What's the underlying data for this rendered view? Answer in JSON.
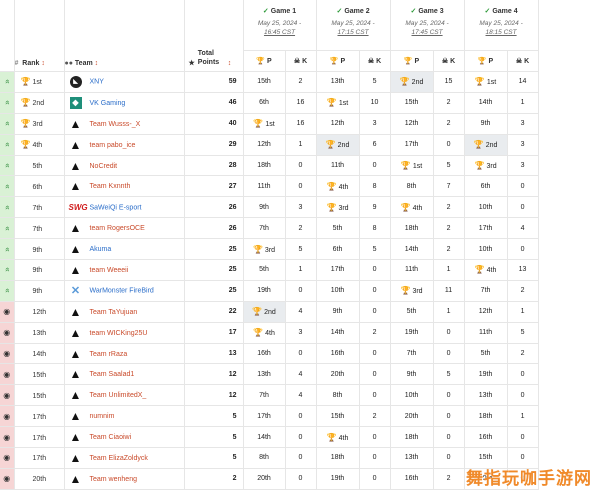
{
  "headers": {
    "rank": "Rank",
    "team": "Team",
    "total_points": "Total Points",
    "p": "P",
    "k": "K"
  },
  "games": [
    {
      "name": "Game 1",
      "date1": "May 25, 2024 -",
      "date2": "16:45 CST"
    },
    {
      "name": "Game 2",
      "date1": "May 25, 2024 -",
      "date2": "17:15 CST"
    },
    {
      "name": "Game 3",
      "date1": "May 25, 2024 -",
      "date2": "17:45 CST"
    },
    {
      "name": "Game 4",
      "date1": "May 25, 2024 -",
      "date2": "18:15 CST"
    }
  ],
  "rows": [
    {
      "trend": "up",
      "rank": "1st",
      "trophy": "gold",
      "logo": "xny",
      "team": "XNY",
      "blue": true,
      "points": "59",
      "g": [
        [
          "15th",
          "2"
        ],
        [
          "13th",
          "5"
        ],
        [
          "2nd",
          "15"
        ],
        [
          "1st",
          "14"
        ]
      ]
    },
    {
      "trend": "up",
      "rank": "2nd",
      "trophy": "silver",
      "logo": "vk",
      "team": "VK Gaming",
      "blue": true,
      "points": "46",
      "g": [
        [
          "6th",
          "16"
        ],
        [
          "1st",
          "10"
        ],
        [
          "15th",
          "2"
        ],
        [
          "14th",
          "1"
        ]
      ]
    },
    {
      "trend": "up",
      "rank": "3rd",
      "trophy": "bronze",
      "logo": "apex",
      "team": "Team Wusss-_X",
      "blue": false,
      "points": "40",
      "g": [
        [
          "1st",
          "16"
        ],
        [
          "12th",
          "3"
        ],
        [
          "12th",
          "2"
        ],
        [
          "9th",
          "3"
        ]
      ]
    },
    {
      "trend": "up",
      "rank": "4th",
      "trophy": "gold",
      "logo": "apex",
      "team": "team pabo_ice",
      "blue": false,
      "points": "29",
      "g": [
        [
          "12th",
          "1"
        ],
        [
          "2nd",
          "6"
        ],
        [
          "17th",
          "0"
        ],
        [
          "2nd",
          "3"
        ]
      ]
    },
    {
      "trend": "up",
      "rank": "5th",
      "trophy": "",
      "logo": "apex",
      "team": "NoCredit",
      "blue": false,
      "points": "28",
      "g": [
        [
          "18th",
          "0"
        ],
        [
          "11th",
          "0"
        ],
        [
          "1st",
          "5"
        ],
        [
          "3rd",
          "3"
        ]
      ]
    },
    {
      "trend": "up",
      "rank": "6th",
      "trophy": "",
      "logo": "apex",
      "team": "Team Kxnnth",
      "blue": false,
      "points": "27",
      "g": [
        [
          "11th",
          "0"
        ],
        [
          "4th",
          "8"
        ],
        [
          "8th",
          "7"
        ],
        [
          "6th",
          "0"
        ]
      ]
    },
    {
      "trend": "up",
      "rank": "7th",
      "trophy": "",
      "logo": "swg",
      "team": "SaWeiQi E-sport",
      "blue": true,
      "points": "26",
      "g": [
        [
          "9th",
          "3"
        ],
        [
          "3rd",
          "9"
        ],
        [
          "4th",
          "2"
        ],
        [
          "10th",
          "0"
        ]
      ]
    },
    {
      "trend": "up",
      "rank": "7th",
      "trophy": "",
      "logo": "apex",
      "team": "team RogersOCE",
      "blue": false,
      "points": "26",
      "g": [
        [
          "7th",
          "2"
        ],
        [
          "5th",
          "8"
        ],
        [
          "18th",
          "2"
        ],
        [
          "17th",
          "4"
        ]
      ]
    },
    {
      "trend": "up",
      "rank": "9th",
      "trophy": "",
      "logo": "apex",
      "team": "Akuma",
      "blue": true,
      "points": "25",
      "g": [
        [
          "3rd",
          "5"
        ],
        [
          "6th",
          "5"
        ],
        [
          "14th",
          "2"
        ],
        [
          "10th",
          "0"
        ]
      ]
    },
    {
      "trend": "up",
      "rank": "9th",
      "trophy": "",
      "logo": "apex",
      "team": "team Weeeii",
      "blue": false,
      "points": "25",
      "g": [
        [
          "5th",
          "1"
        ],
        [
          "17th",
          "0"
        ],
        [
          "11th",
          "1"
        ],
        [
          "4th",
          "13"
        ]
      ]
    },
    {
      "trend": "up",
      "rank": "9th",
      "trophy": "",
      "logo": "wm",
      "team": "WarMonster FireBird",
      "blue": true,
      "points": "25",
      "g": [
        [
          "19th",
          "0"
        ],
        [
          "10th",
          "0"
        ],
        [
          "3rd",
          "11"
        ],
        [
          "7th",
          "2"
        ]
      ]
    },
    {
      "trend": "dn",
      "rank": "12th",
      "trophy": "",
      "logo": "apex",
      "team": "Team TaYujuan",
      "blue": false,
      "points": "22",
      "g": [
        [
          "2nd",
          "4"
        ],
        [
          "9th",
          "0"
        ],
        [
          "5th",
          "1"
        ],
        [
          "12th",
          "1"
        ]
      ]
    },
    {
      "trend": "dn",
      "rank": "13th",
      "trophy": "",
      "logo": "apex",
      "team": "team WICKing25U",
      "blue": false,
      "points": "17",
      "g": [
        [
          "4th",
          "3"
        ],
        [
          "14th",
          "2"
        ],
        [
          "19th",
          "0"
        ],
        [
          "11th",
          "5"
        ]
      ]
    },
    {
      "trend": "dn",
      "rank": "14th",
      "trophy": "",
      "logo": "apex",
      "team": "Team rRaza",
      "blue": false,
      "points": "13",
      "g": [
        [
          "16th",
          "0"
        ],
        [
          "16th",
          "0"
        ],
        [
          "7th",
          "0"
        ],
        [
          "5th",
          "2"
        ]
      ]
    },
    {
      "trend": "dn",
      "rank": "15th",
      "trophy": "",
      "logo": "apex",
      "team": "Team Saalad1",
      "blue": false,
      "points": "12",
      "g": [
        [
          "13th",
          "4"
        ],
        [
          "20th",
          "0"
        ],
        [
          "9th",
          "5"
        ],
        [
          "19th",
          "0"
        ]
      ]
    },
    {
      "trend": "dn",
      "rank": "15th",
      "trophy": "",
      "logo": "apex",
      "team": "Team UnlimitedX_",
      "blue": false,
      "points": "12",
      "g": [
        [
          "7th",
          "4"
        ],
        [
          "8th",
          "0"
        ],
        [
          "10th",
          "0"
        ],
        [
          "13th",
          "0"
        ]
      ]
    },
    {
      "trend": "dn",
      "rank": "17th",
      "trophy": "",
      "logo": "apex",
      "team": "numnim",
      "blue": false,
      "points": "5",
      "g": [
        [
          "17th",
          "0"
        ],
        [
          "15th",
          "2"
        ],
        [
          "20th",
          "0"
        ],
        [
          "18th",
          "1"
        ]
      ]
    },
    {
      "trend": "dn",
      "rank": "17th",
      "trophy": "",
      "logo": "apex",
      "team": "Team Ciaoiwi",
      "blue": false,
      "points": "5",
      "g": [
        [
          "14th",
          "0"
        ],
        [
          "4th",
          "0"
        ],
        [
          "18th",
          "0"
        ],
        [
          "16th",
          "0"
        ]
      ]
    },
    {
      "trend": "dn",
      "rank": "17th",
      "trophy": "",
      "logo": "apex",
      "team": "Team ElizaZoldyck",
      "blue": false,
      "points": "5",
      "g": [
        [
          "8th",
          "0"
        ],
        [
          "18th",
          "0"
        ],
        [
          "13th",
          "0"
        ],
        [
          "15th",
          "0"
        ]
      ]
    },
    {
      "trend": "dn",
      "rank": "20th",
      "trophy": "",
      "logo": "apex",
      "team": "Team wenheng",
      "blue": false,
      "points": "2",
      "g": [
        [
          "20th",
          "0"
        ],
        [
          "19th",
          "0"
        ],
        [
          "16th",
          "2"
        ],
        [
          "20th",
          "0"
        ]
      ]
    }
  ],
  "watermark": "舞指玩咖手游网"
}
